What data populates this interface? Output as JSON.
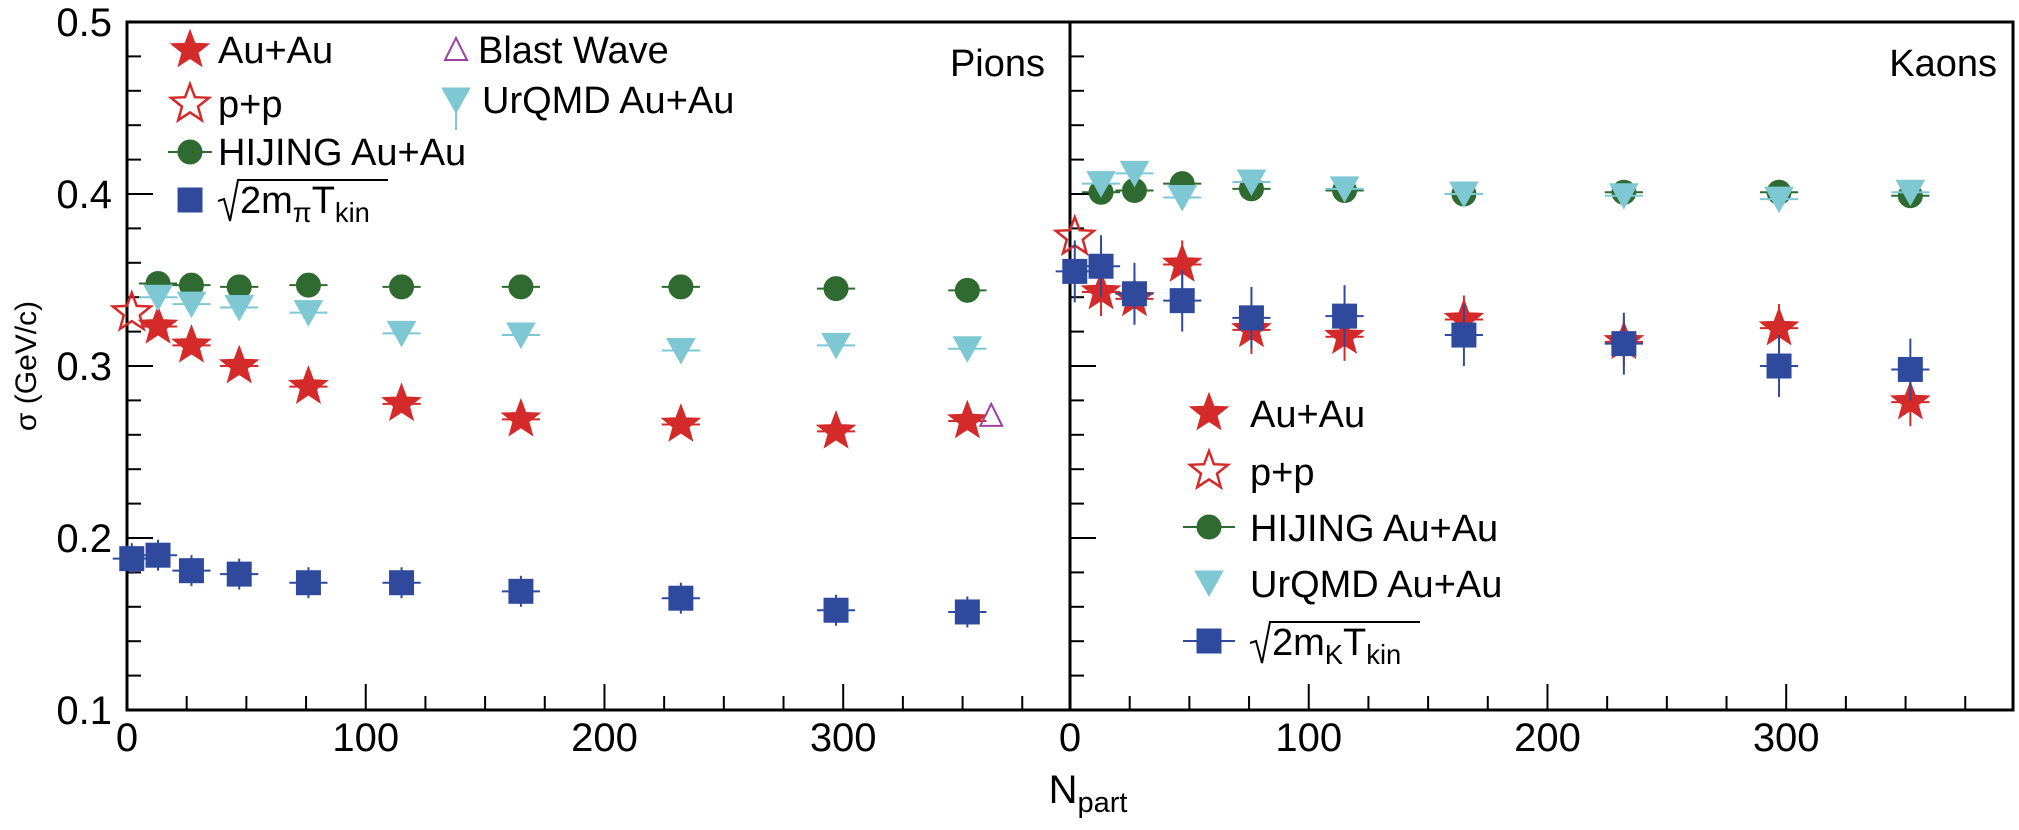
{
  "chart_data": [
    {
      "type": "scatter",
      "panel_label": "Pions",
      "ylabel": "σ (GeV/c)",
      "xlim": [
        0,
        395
      ],
      "ylim": [
        0.1,
        0.5
      ],
      "x_ticks": [
        "0",
        "100",
        "200",
        "300"
      ],
      "y_ticks": [
        "0.1",
        "0.2",
        "0.3",
        "0.4",
        "0.5"
      ],
      "legend_position": "top-left",
      "series": [
        {
          "key": "auau",
          "name": "Au+Au",
          "marker": "star",
          "color": "#d42a2a",
          "filled": true,
          "xerr": 8,
          "points": [
            [
              13,
              0.323
            ],
            [
              27,
              0.312
            ],
            [
              47,
              0.3
            ],
            [
              76,
              0.288
            ],
            [
              115,
              0.278
            ],
            [
              165,
              0.269
            ],
            [
              232,
              0.266
            ],
            [
              297,
              0.262
            ],
            [
              352,
              0.268
            ]
          ]
        },
        {
          "key": "pp",
          "name": "p+p",
          "marker": "star",
          "color": "#d42a2a",
          "filled": false,
          "points": [
            [
              2,
              0.331
            ]
          ]
        },
        {
          "key": "hijing",
          "name": "HIJING Au+Au",
          "marker": "circle",
          "color": "#2f6b30",
          "filled": true,
          "xerr": 8,
          "points": [
            [
              13,
              0.348
            ],
            [
              27,
              0.347
            ],
            [
              47,
              0.346
            ],
            [
              76,
              0.347
            ],
            [
              115,
              0.346
            ],
            [
              165,
              0.346
            ],
            [
              232,
              0.346
            ],
            [
              297,
              0.345
            ],
            [
              352,
              0.344
            ]
          ]
        },
        {
          "key": "blastwave",
          "name": "Blast Wave",
          "marker": "triangle-up",
          "color": "#a040a0",
          "filled": false,
          "points": [
            [
              362,
              0.271
            ]
          ]
        },
        {
          "key": "urqmd",
          "name": "UrQMD Au+Au",
          "marker": "triangle-down",
          "color": "#7ec8d4",
          "filled": true,
          "xerr": 8,
          "points": [
            [
              13,
              0.34
            ],
            [
              27,
              0.336
            ],
            [
              47,
              0.334
            ],
            [
              76,
              0.331
            ],
            [
              115,
              0.319
            ],
            [
              165,
              0.318
            ],
            [
              232,
              0.309
            ],
            [
              297,
              0.312
            ],
            [
              352,
              0.31
            ]
          ]
        },
        {
          "key": "sqrt",
          "name": "√2m_π T_kin",
          "name_main": "2m",
          "name_sub1": "π",
          "name_mid": "T",
          "name_sub2": "kin",
          "marker": "square",
          "color": "#2f4a9c",
          "filled": true,
          "xerr": 8,
          "yerr": 0.009,
          "points": [
            [
              2,
              0.188
            ],
            [
              13,
              0.19
            ],
            [
              27,
              0.181
            ],
            [
              47,
              0.179
            ],
            [
              76,
              0.174
            ],
            [
              115,
              0.174
            ],
            [
              165,
              0.169
            ],
            [
              232,
              0.165
            ],
            [
              297,
              0.158
            ],
            [
              352,
              0.157
            ]
          ]
        }
      ]
    },
    {
      "type": "scatter",
      "panel_label": "Kaons",
      "xlabel": "N_part",
      "xlabel_main": "N",
      "xlabel_sub": "part",
      "xlim": [
        0,
        395
      ],
      "ylim": [
        0.1,
        0.5
      ],
      "x_ticks": [
        "0",
        "100",
        "200",
        "300"
      ],
      "legend_position": "bottom-center",
      "series": [
        {
          "key": "auau",
          "name": "Au+Au",
          "marker": "star",
          "color": "#d42a2a",
          "filled": true,
          "xerr": 8,
          "yerr": 0.014,
          "points": [
            [
              13,
              0.343
            ],
            [
              27,
              0.339
            ],
            [
              47,
              0.359
            ],
            [
              76,
              0.321
            ],
            [
              115,
              0.317
            ],
            [
              165,
              0.327
            ],
            [
              232,
              0.314
            ],
            [
              297,
              0.322
            ],
            [
              352,
              0.279
            ]
          ]
        },
        {
          "key": "pp",
          "name": "p+p",
          "marker": "star",
          "color": "#d42a2a",
          "filled": false,
          "points": [
            [
              2,
              0.375
            ]
          ]
        },
        {
          "key": "hijing",
          "name": "HIJING Au+Au",
          "marker": "circle",
          "color": "#2f6b30",
          "filled": true,
          "xerr": 8,
          "points": [
            [
              13,
              0.401
            ],
            [
              27,
              0.402
            ],
            [
              47,
              0.406
            ],
            [
              76,
              0.403
            ],
            [
              115,
              0.402
            ],
            [
              165,
              0.4
            ],
            [
              232,
              0.401
            ],
            [
              297,
              0.401
            ],
            [
              352,
              0.399
            ]
          ]
        },
        {
          "key": "urqmd",
          "name": "UrQMD Au+Au",
          "marker": "triangle-down",
          "color": "#7ec8d4",
          "filled": true,
          "xerr": 8,
          "points": [
            [
              13,
              0.406
            ],
            [
              27,
              0.412
            ],
            [
              47,
              0.398
            ],
            [
              76,
              0.407
            ],
            [
              115,
              0.403
            ],
            [
              165,
              0.4
            ],
            [
              232,
              0.399
            ],
            [
              297,
              0.397
            ],
            [
              352,
              0.401
            ]
          ]
        },
        {
          "key": "sqrt",
          "name": "√2m_K T_kin",
          "name_main": "2m",
          "name_sub1": "K",
          "name_mid": "T",
          "name_sub2": "kin",
          "marker": "square",
          "color": "#2f4a9c",
          "filled": true,
          "xerr": 8,
          "yerr": 0.018,
          "points": [
            [
              2,
              0.355
            ],
            [
              13,
              0.358
            ],
            [
              27,
              0.342
            ],
            [
              47,
              0.338
            ],
            [
              76,
              0.328
            ],
            [
              115,
              0.329
            ],
            [
              165,
              0.318
            ],
            [
              232,
              0.313
            ],
            [
              297,
              0.3
            ],
            [
              352,
              0.298
            ]
          ]
        }
      ]
    }
  ]
}
